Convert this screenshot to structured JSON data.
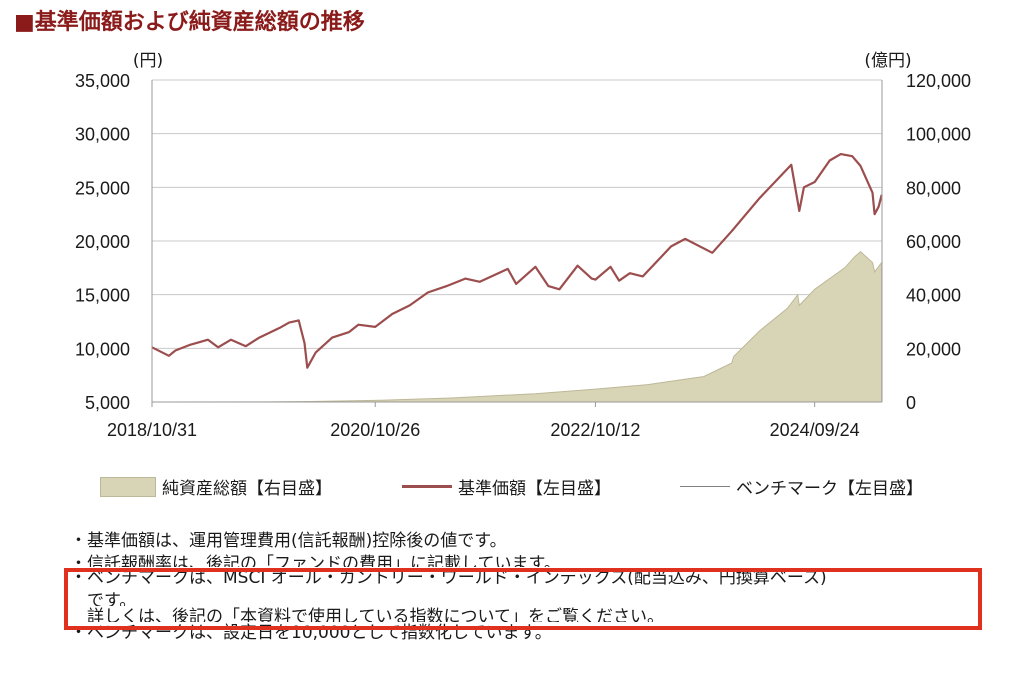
{
  "title": "■基準価額および純資産総額の推移",
  "chart_data": {
    "type": "line",
    "left_unit": "(円)",
    "right_unit": "(億円)",
    "left_axis": {
      "min": 5000,
      "max": 35000,
      "ticks": [
        "5,000",
        "10,000",
        "15,000",
        "20,000",
        "25,000",
        "30,000",
        "35,000"
      ],
      "tick_values": [
        5000,
        10000,
        15000,
        20000,
        25000,
        30000,
        35000
      ]
    },
    "right_axis": {
      "min": 0,
      "max": 120000,
      "ticks": [
        "0",
        "20,000",
        "40,000",
        "60,000",
        "80,000",
        "100,000",
        "120,000"
      ],
      "tick_values": [
        0,
        20000,
        40000,
        60000,
        80000,
        100000,
        120000
      ]
    },
    "x_range": [
      "2018/10/31",
      "2025/04"
    ],
    "x_ticks": [
      "2018/10/31",
      "2020/10/26",
      "2022/10/12",
      "2024/09/24"
    ],
    "grid": true,
    "legend_position": "bottom",
    "series": [
      {
        "name": "基準価額【左目盛】",
        "axis": "left",
        "kind": "line",
        "color": "#9c4d4d",
        "points": [
          [
            "2018/10/31",
            10100
          ],
          [
            "2018/12/25",
            9300
          ],
          [
            "2019/01/15",
            9800
          ],
          [
            "2019/03/01",
            10300
          ],
          [
            "2019/05/01",
            10800
          ],
          [
            "2019/06/03",
            10100
          ],
          [
            "2019/07/15",
            10800
          ],
          [
            "2019/09/01",
            10200
          ],
          [
            "2019/10/15",
            11000
          ],
          [
            "2019/12/20",
            11900
          ],
          [
            "2020/01/20",
            12400
          ],
          [
            "2020/02/20",
            12600
          ],
          [
            "2020/03/10",
            10500
          ],
          [
            "2020/03/19",
            8200
          ],
          [
            "2020/04/15",
            9600
          ],
          [
            "2020/06/08",
            11000
          ],
          [
            "2020/08/01",
            11500
          ],
          [
            "2020/09/01",
            12200
          ],
          [
            "2020/10/26",
            12000
          ],
          [
            "2020/12/20",
            13200
          ],
          [
            "2021/02/15",
            14000
          ],
          [
            "2021/04/15",
            15200
          ],
          [
            "2021/06/15",
            15800
          ],
          [
            "2021/08/15",
            16500
          ],
          [
            "2021/10/01",
            16200
          ],
          [
            "2021/12/31",
            17400
          ],
          [
            "2022/01/27",
            16000
          ],
          [
            "2022/03/31",
            17600
          ],
          [
            "2022/05/12",
            15800
          ],
          [
            "2022/06/17",
            15500
          ],
          [
            "2022/08/15",
            17700
          ],
          [
            "2022/09/30",
            16500
          ],
          [
            "2022/10/12",
            16400
          ],
          [
            "2022/11/30",
            17600
          ],
          [
            "2022/12/28",
            16300
          ],
          [
            "2023/02/01",
            17000
          ],
          [
            "2023/03/15",
            16700
          ],
          [
            "2023/06/15",
            19500
          ],
          [
            "2023/07/31",
            20200
          ],
          [
            "2023/10/27",
            18900
          ],
          [
            "2023/12/29",
            20900
          ],
          [
            "2024/03/29",
            24000
          ],
          [
            "2024/07/10",
            27100
          ],
          [
            "2024/08/05",
            22800
          ],
          [
            "2024/08/20",
            25000
          ],
          [
            "2024/09/24",
            25500
          ],
          [
            "2024/11/12",
            27500
          ],
          [
            "2024/12/18",
            28100
          ],
          [
            "2025/01/24",
            27900
          ],
          [
            "2025/02/20",
            27000
          ],
          [
            "2025/03/31",
            24500
          ],
          [
            "2025/04/07",
            22500
          ],
          [
            "2025/04/20",
            23200
          ],
          [
            "2025/04/30",
            24300
          ]
        ]
      },
      {
        "name": "純資産総額【右目盛】",
        "axis": "right",
        "kind": "area",
        "color": "#d8d4b6",
        "points": [
          [
            "2018/10/31",
            0
          ],
          [
            "2019/10/31",
            50
          ],
          [
            "2020/03/31",
            200
          ],
          [
            "2020/10/26",
            600
          ],
          [
            "2021/06/30",
            1500
          ],
          [
            "2022/03/31",
            3100
          ],
          [
            "2022/10/12",
            4800
          ],
          [
            "2023/03/31",
            6500
          ],
          [
            "2023/09/30",
            9500
          ],
          [
            "2023/12/29",
            14500
          ],
          [
            "2024/01/05",
            17000
          ],
          [
            "2024/03/29",
            26500
          ],
          [
            "2024/06/28",
            35000
          ],
          [
            "2024/07/31",
            40000
          ],
          [
            "2024/08/05",
            36000
          ],
          [
            "2024/09/24",
            42000
          ],
          [
            "2024/12/31",
            50000
          ],
          [
            "2025/01/31",
            54000
          ],
          [
            "2025/02/20",
            56000
          ],
          [
            "2025/03/31",
            52000
          ],
          [
            "2025/04/07",
            48500
          ],
          [
            "2025/04/30",
            52000
          ]
        ]
      },
      {
        "name": "ベンチマーク【左目盛】",
        "axis": "left",
        "kind": "line",
        "color": "#808080",
        "points": []
      }
    ]
  },
  "legend": [
    {
      "label": "純資産総額【右目盛】",
      "kind": "area"
    },
    {
      "label": "基準価額【左目盛】",
      "kind": "line-red"
    },
    {
      "label": "ベンチマーク【左目盛】",
      "kind": "line-gray"
    }
  ],
  "notes": [
    "・基準価額は、運用管理費用(信託報酬)控除後の値です。",
    "・信託報酬率は、後記の「ファンドの費用」に記載しています。",
    "・ベンチマークは、MSCI オール・カントリー・ワールド・インデックス(配当込み、円換算ベース)",
    "　です。",
    "　詳しくは、後記の「本資料で使用している指数について」をご覧ください。",
    "・ベンチマークは、設定日を10,000として指数化しています。"
  ],
  "colors": {
    "title": "#8b1a1a",
    "highlight": "#e0301e",
    "nav_line": "#9c4d4d",
    "aum_fill": "#d8d4b6",
    "grid": "#c8c8c8"
  }
}
